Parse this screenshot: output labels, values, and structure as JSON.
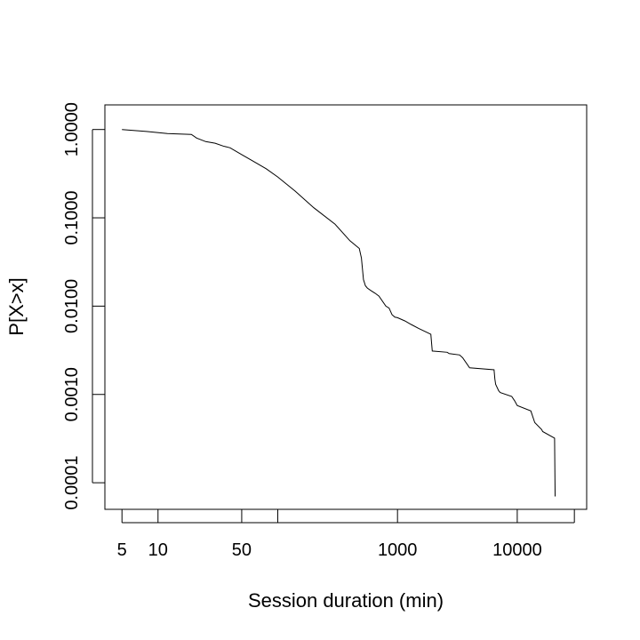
{
  "chart_data": {
    "type": "line",
    "title": "",
    "xlabel": "Session duration (min)",
    "ylabel": "P[X>x]",
    "x_scale": "log",
    "y_scale": "log",
    "xlim": [
      3.6,
      38000
    ],
    "ylim": [
      5e-05,
      1.9
    ],
    "grid": false,
    "legend": "none",
    "line_color": "#000000",
    "x_ticks": [
      {
        "value": 5,
        "label": "5"
      },
      {
        "value": 10,
        "label": "10"
      },
      {
        "value": 50,
        "label": "50"
      },
      {
        "value": 100,
        "label": ""
      },
      {
        "value": 1000,
        "label": "1000"
      },
      {
        "value": 10000,
        "label": "10000"
      },
      {
        "value": 30000,
        "label": ""
      }
    ],
    "y_ticks": [
      {
        "value": 1,
        "label": "1.0000"
      },
      {
        "value": 0.1,
        "label": "0.1000"
      },
      {
        "value": 0.01,
        "label": "0.0100"
      },
      {
        "value": 0.001,
        "label": "0.0010"
      },
      {
        "value": 0.0001,
        "label": "0.0001"
      }
    ],
    "series": [
      {
        "x": [
          5,
          8,
          12,
          19,
          21,
          25,
          30,
          35,
          40,
          50,
          60,
          80,
          100,
          140,
          200,
          300,
          400,
          480,
          500,
          520,
          540,
          560,
          600,
          650,
          700,
          800,
          850,
          900,
          950,
          1000,
          1150,
          1300,
          1500,
          1900,
          1950,
          2600,
          2700,
          3300,
          3500,
          4000,
          6400,
          6500,
          6600,
          7000,
          7200,
          9000,
          9500,
          10000,
          13000,
          14000,
          16000,
          16300,
          20500,
          20700
        ],
        "y": [
          1.0,
          0.95,
          0.9,
          0.88,
          0.8,
          0.73,
          0.7,
          0.65,
          0.62,
          0.52,
          0.45,
          0.36,
          0.29,
          0.2,
          0.13,
          0.085,
          0.055,
          0.045,
          0.035,
          0.02,
          0.017,
          0.016,
          0.015,
          0.014,
          0.013,
          0.01,
          0.0095,
          0.008,
          0.0075,
          0.0074,
          0.0068,
          0.0062,
          0.0056,
          0.0048,
          0.0031,
          0.003,
          0.0029,
          0.0028,
          0.0026,
          0.002,
          0.0019,
          0.0015,
          0.0013,
          0.0011,
          0.00105,
          0.00095,
          0.00085,
          0.00075,
          0.00065,
          0.00048,
          0.0004,
          0.00038,
          0.00032,
          7e-05
        ]
      }
    ]
  }
}
